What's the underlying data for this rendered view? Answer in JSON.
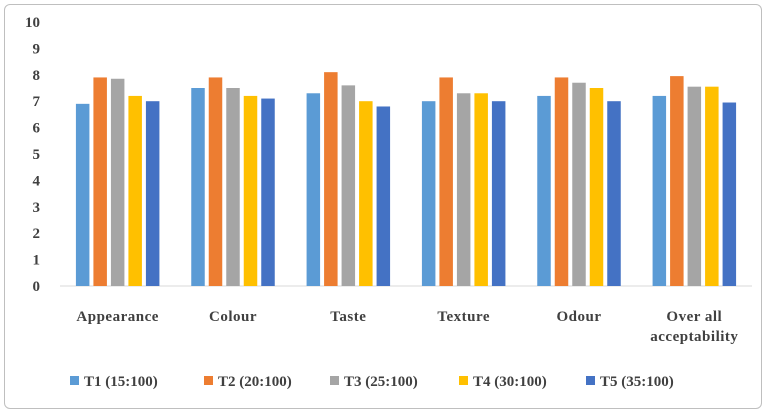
{
  "chart_data": {
    "type": "bar",
    "categories": [
      [
        "Appearance"
      ],
      [
        "Colour"
      ],
      [
        "Taste"
      ],
      [
        "Texture"
      ],
      [
        "Odour"
      ],
      [
        "Over all",
        "acceptability"
      ]
    ],
    "series": [
      {
        "name": "T1 (15:100)",
        "color": "#5B9BD5",
        "values": [
          6.9,
          7.5,
          7.3,
          7.0,
          7.2,
          7.2
        ]
      },
      {
        "name": "T2 (20:100)",
        "color": "#ED7D31",
        "values": [
          7.9,
          7.9,
          8.1,
          7.9,
          7.9,
          7.95
        ]
      },
      {
        "name": "T3 (25:100)",
        "color": "#A5A5A5",
        "values": [
          7.85,
          7.5,
          7.6,
          7.3,
          7.7,
          7.55
        ]
      },
      {
        "name": "T4 (30:100)",
        "color": "#FFC000",
        "values": [
          7.2,
          7.2,
          7.0,
          7.3,
          7.5,
          7.55
        ]
      },
      {
        "name": "T5 (35:100)",
        "color": "#4472C4",
        "values": [
          7.0,
          7.1,
          6.8,
          7.0,
          7.0,
          6.95
        ]
      }
    ],
    "yticks": [
      "0",
      "1",
      "2",
      "3",
      "4",
      "5",
      "6",
      "7",
      "8",
      "9",
      "10"
    ],
    "ylim": [
      0,
      10
    ],
    "grid": false,
    "legend_position": "bottom"
  }
}
